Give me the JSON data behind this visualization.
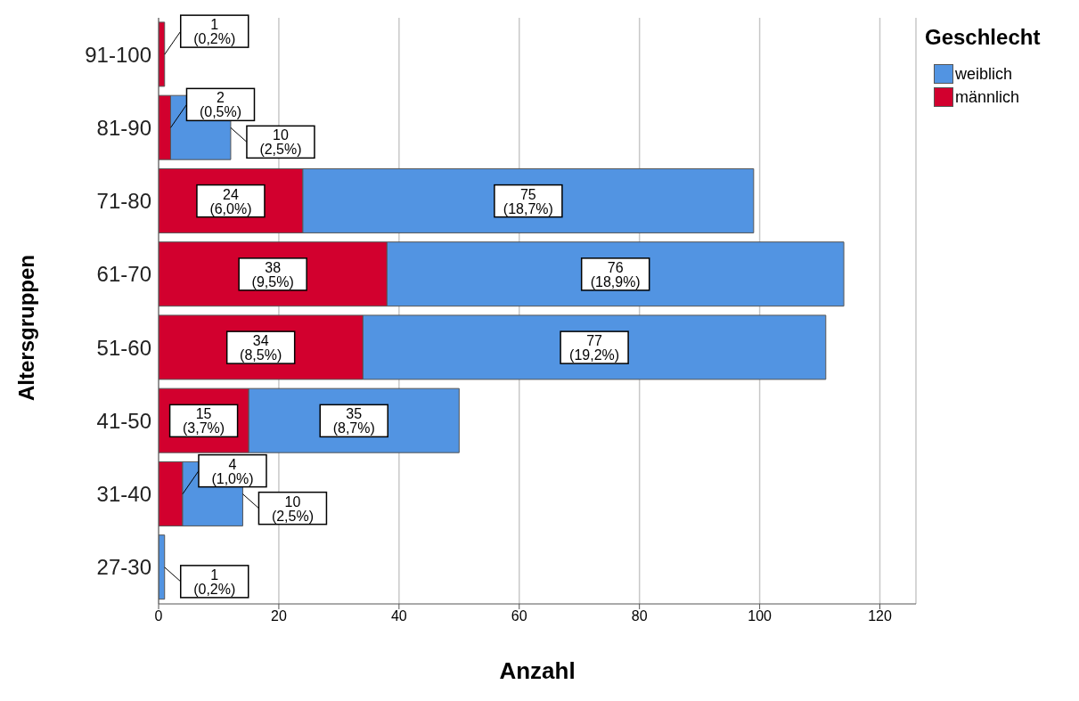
{
  "chart_data": {
    "type": "bar",
    "orientation": "horizontal",
    "stacked": true,
    "ylabel": "Altersgruppen",
    "xlabel": "Anzahl",
    "legend_title": "Geschlecht",
    "categories": [
      "91-100",
      "81-90",
      "71-80",
      "61-70",
      "51-60",
      "41-50",
      "31-40",
      "27-30"
    ],
    "series": [
      {
        "name": "männlich",
        "color": "#d2002e",
        "values": [
          1,
          2,
          24,
          38,
          34,
          15,
          4,
          null
        ],
        "value_labels": [
          "1\n(0,2%)",
          "2\n(0,5%)",
          "24\n(6,0%)",
          "38\n(9,5%)",
          "34\n(8,5%)",
          "15\n(3,7%)",
          "4\n(1,0%)",
          null
        ]
      },
      {
        "name": "weiblich",
        "color": "#5294e2",
        "values": [
          null,
          10,
          75,
          76,
          77,
          35,
          10,
          1
        ],
        "value_labels": [
          null,
          "10\n(2,5%)",
          "75\n(18,7%)",
          "76\n(18,9%)",
          "77\n(19,2%)",
          "35\n(8,7%)",
          "10\n(2,5%)",
          "1\n(0,2%)"
        ]
      }
    ],
    "xlim": [
      0,
      126
    ],
    "xticks": [
      0,
      20,
      40,
      60,
      80,
      100,
      120
    ],
    "grid": "x",
    "legend": "top right"
  }
}
